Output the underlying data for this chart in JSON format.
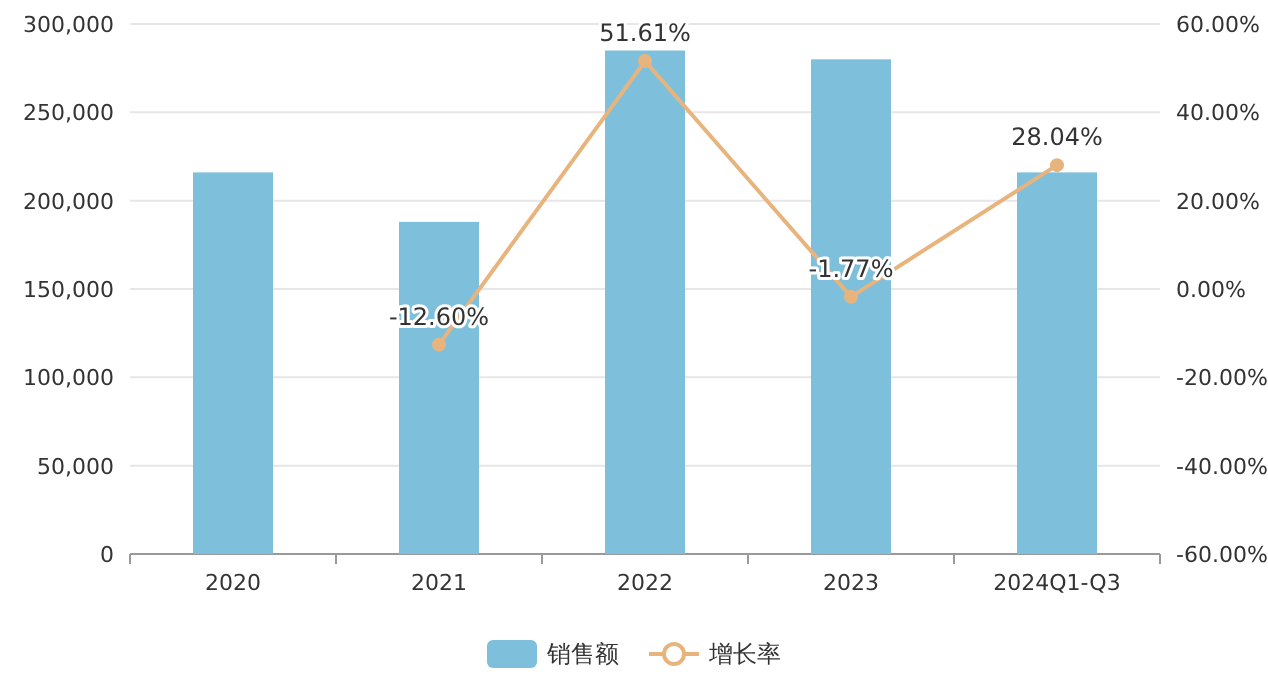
{
  "chart_data": {
    "type": "bar",
    "categories": [
      "2020",
      "2021",
      "2022",
      "2023",
      "2024Q1-Q3"
    ],
    "series": [
      {
        "name": "销售额",
        "color": "#7ebfdc",
        "values": [
          216000,
          188000,
          285000,
          280000,
          216000
        ]
      },
      {
        "name": "增长率",
        "type": "line",
        "axis": "y2",
        "color": "#e8b47e",
        "marker": "circle",
        "values": [
          null,
          -12.6,
          51.61,
          -1.77,
          28.04
        ],
        "value_labels": [
          null,
          "-12.60%",
          "51.61%",
          "-1.77%",
          "28.04%"
        ]
      }
    ],
    "ylim": [
      0,
      300000
    ],
    "yticks": [
      {
        "value": 0,
        "label": "0"
      },
      {
        "value": 50000,
        "label": "50,000"
      },
      {
        "value": 100000,
        "label": "100,000"
      },
      {
        "value": 150000,
        "label": "150,000"
      },
      {
        "value": 200000,
        "label": "200,000"
      },
      {
        "value": 250000,
        "label": "250,000"
      },
      {
        "value": 300000,
        "label": "300,000"
      }
    ],
    "y2lim": [
      -60,
      60
    ],
    "y2ticks": [
      {
        "value": -60,
        "label": "-60.00%"
      },
      {
        "value": -40,
        "label": "-40.00%"
      },
      {
        "value": -20,
        "label": "-20.00%"
      },
      {
        "value": 0,
        "label": "0.00%"
      },
      {
        "value": 20,
        "label": "20.00%"
      },
      {
        "value": 40,
        "label": "40.00%"
      },
      {
        "value": 60,
        "label": "60.00%"
      }
    ],
    "grid": "y",
    "legend": "bottom"
  }
}
